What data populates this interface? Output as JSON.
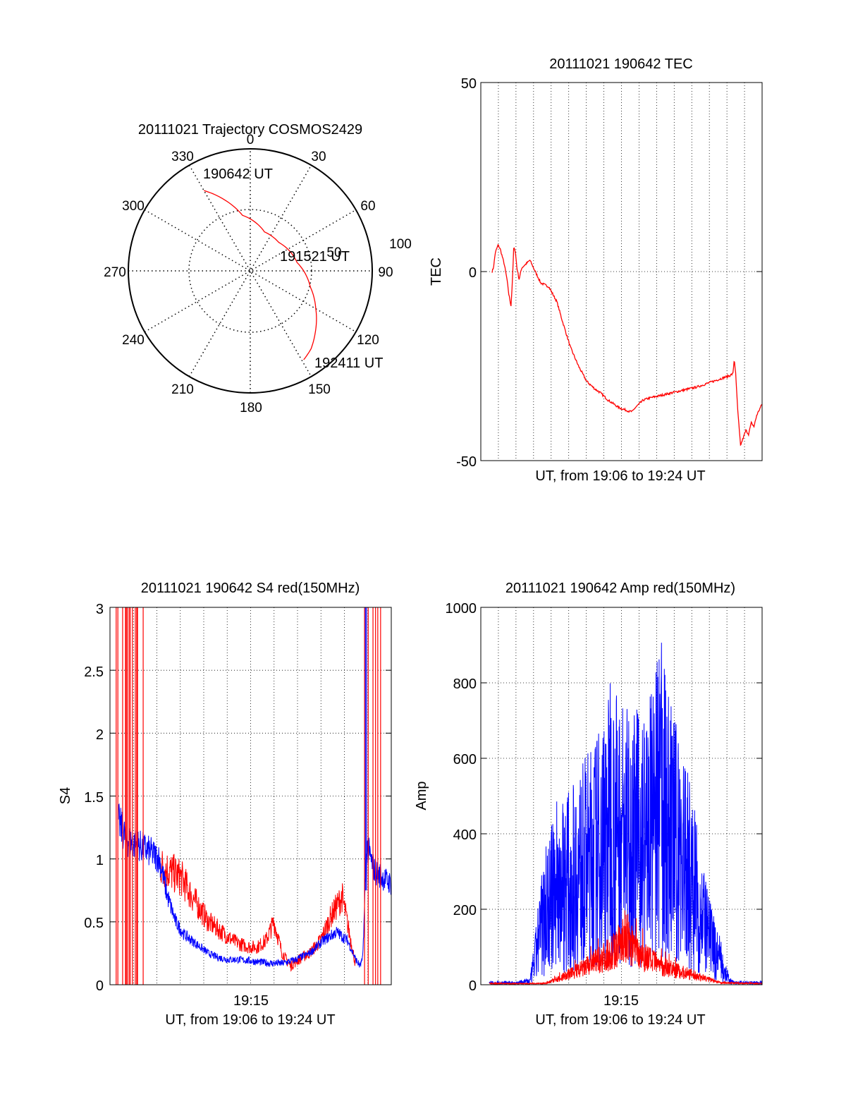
{
  "figure": {
    "background": "#ffffff",
    "series_colors": {
      "red": "#ff0000",
      "blue": "#0000ff"
    }
  },
  "chart_data": [
    {
      "id": "trajectory",
      "type": "polar",
      "title": "20111021 Trajectory COSMOS2429",
      "azimuth_labels": [
        "0",
        "30",
        "60",
        "90",
        "120",
        "150",
        "180",
        "210",
        "240",
        "270",
        "300",
        "330"
      ],
      "ring_labels": [
        "50",
        "100"
      ],
      "annotations": {
        "start": "190642 UT",
        "middle": "191521 UT",
        "end": "192411 UT"
      },
      "trajectory": [
        {
          "az": 330,
          "r": 76
        },
        {
          "az": 340,
          "r": 62
        },
        {
          "az": 352,
          "r": 46
        },
        {
          "az": 20,
          "r": 34
        },
        {
          "az": 45,
          "r": 33
        },
        {
          "az": 80,
          "r": 39
        },
        {
          "az": 105,
          "r": 51
        },
        {
          "az": 120,
          "r": 62
        },
        {
          "az": 133,
          "r": 73
        },
        {
          "az": 142,
          "r": 81
        },
        {
          "az": 149,
          "r": 85
        }
      ],
      "grid": true
    },
    {
      "id": "tec",
      "type": "line",
      "title": "20111021 190642 TEC",
      "xlabel": "UT, from 19:06 to 19:24 UT",
      "ylabel": "TEC",
      "ylim": [
        -50,
        50
      ],
      "yticks": [
        "50",
        "0",
        "-50"
      ],
      "xlim": [
        0,
        1000
      ],
      "grid": true,
      "series": [
        {
          "color": "red",
          "x": [
            0,
            5,
            12,
            22,
            30,
            45,
            55,
            62,
            70,
            75,
            80,
            85,
            92,
            100,
            110,
            125,
            140,
            160,
            180,
            210,
            240,
            260,
            290,
            320,
            350,
            380,
            400,
            430,
            470,
            510,
            520,
            530,
            545,
            560,
            580,
            640,
            700,
            760,
            820,
            860,
            880,
            892,
            897,
            902,
            910,
            920,
            930,
            940,
            950,
            960,
            970,
            980,
            1000
          ],
          "y": [
            0,
            1,
            5,
            7,
            6,
            2,
            -2,
            -6,
            -9,
            -3,
            6,
            6,
            1,
            -2,
            1,
            2,
            3,
            0,
            -3,
            -4,
            -8,
            -13,
            -20,
            -25,
            -29,
            -31,
            -32,
            -34,
            -36,
            -37,
            -37,
            -36,
            -35,
            -34,
            -33.5,
            -32.5,
            -31.5,
            -30.5,
            -29,
            -28,
            -27.5,
            -27,
            -23,
            -27,
            -37,
            -46,
            -44,
            -42,
            -43,
            -40,
            -41,
            -38,
            -35
          ]
        }
      ]
    },
    {
      "id": "s4",
      "type": "line",
      "title": "20111021 190642 S4 red(150MHz)",
      "xlabel": "UT, from 19:06 to 19:24 UT",
      "ylabel": "S4",
      "ylim": [
        0,
        3
      ],
      "yticks": [
        "0",
        "0.5",
        "1",
        "1.5",
        "2",
        "2.5",
        "3"
      ],
      "xtick_label": "19:15",
      "xlim": [
        0,
        1000
      ],
      "grid": true,
      "series": [
        {
          "color": "red",
          "x": [
            0,
            60,
            110,
            150,
            190,
            230,
            270,
            300,
            330,
            360,
            390,
            420,
            450,
            480,
            510,
            540,
            570,
            600,
            630,
            660,
            700,
            740,
            780,
            820,
            870,
            880,
            895,
            910,
            930,
            950
          ],
          "y": [
            1.0,
            1.1,
            1.0,
            0.95,
            0.9,
            0.85,
            0.7,
            0.6,
            0.5,
            0.45,
            0.4,
            0.35,
            0.32,
            0.3,
            0.3,
            0.35,
            0.5,
            0.25,
            0.15,
            0.2,
            0.25,
            0.35,
            0.55,
            0.7,
            0.15,
            0.1,
            0.1,
            0.4,
            1.2,
            1.5
          ],
          "noise": 0.18
        },
        {
          "color": "blue",
          "x": [
            0,
            30,
            80,
            120,
            150,
            180,
            210,
            240,
            270,
            300,
            330,
            360,
            400,
            440,
            480,
            520,
            560,
            600,
            650,
            700,
            750,
            800,
            840,
            870,
            885,
            895,
            910,
            940,
            970,
            1000
          ],
          "y": [
            1.3,
            1.15,
            1.1,
            1.05,
            1.0,
            0.7,
            0.5,
            0.4,
            0.35,
            0.3,
            0.25,
            0.22,
            0.2,
            0.2,
            0.19,
            0.18,
            0.17,
            0.17,
            0.2,
            0.25,
            0.35,
            0.42,
            0.35,
            0.2,
            0.15,
            0.2,
            1.1,
            0.9,
            0.85,
            0.8
          ],
          "noise": 0.12
        }
      ]
    },
    {
      "id": "amp",
      "type": "line",
      "title": "20111021 190642 Amp red(150MHz)",
      "xlabel": "UT, from 19:06 to 19:24 UT",
      "ylabel": "Amp",
      "ylim": [
        0,
        1000
      ],
      "yticks": [
        "0",
        "200",
        "400",
        "600",
        "800",
        "1000"
      ],
      "xtick_label": "19:15",
      "xlim": [
        0,
        1000
      ],
      "grid": true,
      "series": [
        {
          "color": "blue",
          "x": [
            0,
            100,
            150,
            200,
            250,
            300,
            350,
            400,
            450,
            500,
            550,
            600,
            630,
            650,
            700,
            750,
            800,
            850,
            880,
            900,
            1000
          ],
          "y": [
            5,
            5,
            10,
            180,
            260,
            280,
            320,
            360,
            430,
            400,
            380,
            420,
            480,
            430,
            350,
            250,
            130,
            60,
            10,
            5,
            5
          ],
          "noise_ratio": 0.55
        },
        {
          "color": "red",
          "x": [
            0,
            200,
            250,
            300,
            350,
            400,
            450,
            480,
            500,
            520,
            550,
            600,
            650,
            700,
            750,
            800,
            850,
            1000
          ],
          "y": [
            3,
            3,
            15,
            30,
            45,
            65,
            85,
            110,
            130,
            105,
            85,
            60,
            45,
            35,
            25,
            15,
            5,
            3
          ],
          "noise_ratio": 0.35
        }
      ]
    }
  ]
}
